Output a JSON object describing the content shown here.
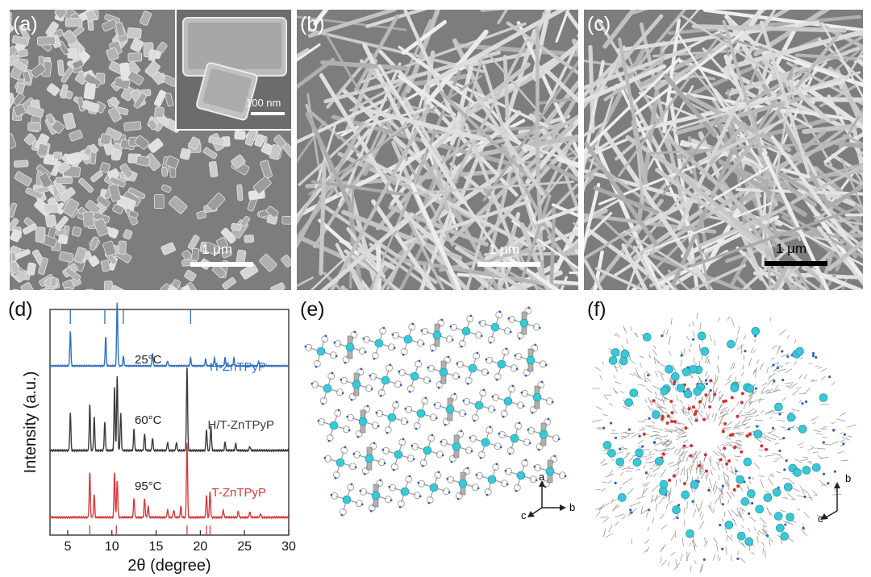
{
  "figure": {
    "panels": {
      "a": {
        "label": "(a)",
        "scale_bar": "1 μm",
        "inset_scale_bar": "100 nm"
      },
      "b": {
        "label": "(b)",
        "scale_bar": "1 μm"
      },
      "c": {
        "label": "(c)",
        "scale_bar": "1 μm"
      },
      "d": {
        "label": "(d)"
      },
      "e": {
        "label": "(e)",
        "axes": {
          "up": "a",
          "right": "b",
          "out": "c"
        }
      },
      "f": {
        "label": "(f)",
        "axes": {
          "up": "b",
          "out": "c"
        }
      }
    }
  },
  "chart_data": {
    "type": "line",
    "xlabel": "2θ (degree)",
    "ylabel": "Intensity (a.u.)",
    "xlim": [
      3,
      30
    ],
    "xticks": [
      5,
      10,
      15,
      20,
      25,
      30
    ],
    "series": [
      {
        "name": "H-ZnTPyP",
        "temperature": "25°C",
        "color": "#2f6ec5",
        "peaks": [
          [
            5.3,
            0.55
          ],
          [
            9.3,
            0.45
          ],
          [
            10.6,
            1.0
          ],
          [
            11.3,
            0.15
          ],
          [
            14.6,
            0.2
          ],
          [
            16.3,
            0.08
          ],
          [
            18.9,
            0.12
          ],
          [
            20.6,
            0.1
          ],
          [
            21.6,
            0.12
          ],
          [
            22.8,
            0.13
          ],
          [
            23.8,
            0.12
          ],
          [
            26.6,
            0.07
          ]
        ]
      },
      {
        "name": "H/T-ZnTPyP",
        "temperature": "60°C",
        "color": "#3a3a3a",
        "peaks": [
          [
            5.3,
            0.45
          ],
          [
            7.5,
            0.55
          ],
          [
            8.0,
            0.4
          ],
          [
            9.2,
            0.35
          ],
          [
            10.3,
            0.75
          ],
          [
            10.6,
            0.9
          ],
          [
            11.0,
            0.45
          ],
          [
            12.5,
            0.25
          ],
          [
            13.7,
            0.2
          ],
          [
            14.6,
            0.15
          ],
          [
            16.3,
            0.1
          ],
          [
            17.3,
            0.1
          ],
          [
            18.5,
            1.0
          ],
          [
            20.7,
            0.25
          ],
          [
            21.2,
            0.3
          ],
          [
            22.8,
            0.1
          ],
          [
            24.0,
            0.08
          ],
          [
            25.6,
            0.05
          ]
        ]
      },
      {
        "name": "T-ZnTPyP",
        "temperature": "95°C",
        "color": "#d93a3a",
        "peaks": [
          [
            7.5,
            0.6
          ],
          [
            8.0,
            0.3
          ],
          [
            10.3,
            0.6
          ],
          [
            10.6,
            0.5
          ],
          [
            12.5,
            0.25
          ],
          [
            13.7,
            0.25
          ],
          [
            14.1,
            0.15
          ],
          [
            16.3,
            0.1
          ],
          [
            17.0,
            0.1
          ],
          [
            17.8,
            0.15
          ],
          [
            18.5,
            1.0
          ],
          [
            20.7,
            0.3
          ],
          [
            21.1,
            0.35
          ],
          [
            22.6,
            0.1
          ],
          [
            24.3,
            0.08
          ],
          [
            25.6,
            0.08
          ],
          [
            26.8,
            0.05
          ]
        ]
      }
    ],
    "reference_sticks": {
      "top": [
        5.3,
        9.2,
        10.6,
        11.3,
        18.9
      ],
      "bottom": [
        7.5,
        10.5,
        18.5,
        20.7,
        21.1
      ]
    }
  }
}
